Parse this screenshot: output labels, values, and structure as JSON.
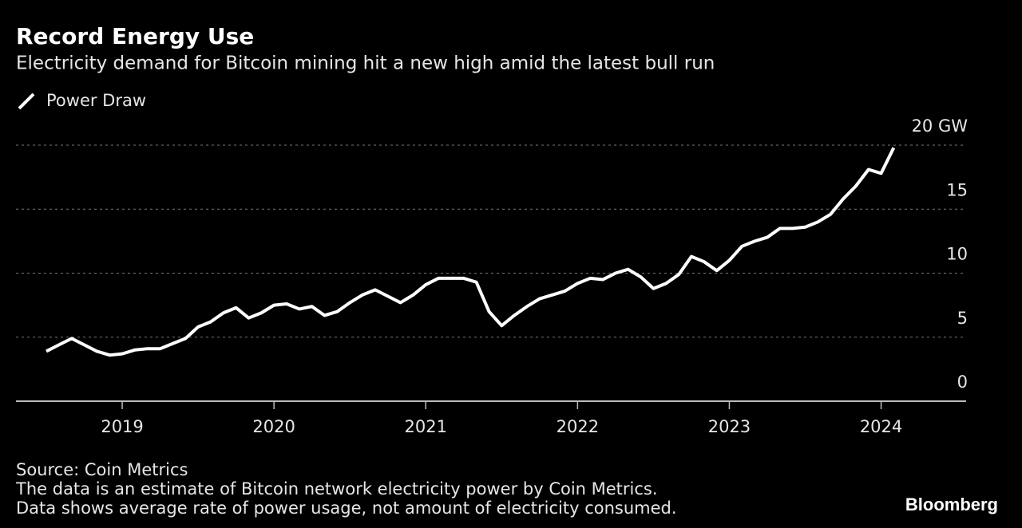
{
  "chart_data": {
    "type": "line",
    "title": "Record Energy Use",
    "subtitle": "Electricity demand for Bitcoin mining hit a new high amid the latest bull run",
    "x": [
      2018.5,
      2018.583,
      2018.667,
      2018.75,
      2018.833,
      2018.917,
      2019,
      2019.083,
      2019.167,
      2019.25,
      2019.333,
      2019.417,
      2019.5,
      2019.583,
      2019.667,
      2019.75,
      2019.833,
      2019.917,
      2020,
      2020.083,
      2020.167,
      2020.25,
      2020.333,
      2020.417,
      2020.5,
      2020.583,
      2020.667,
      2020.75,
      2020.833,
      2020.917,
      2021,
      2021.083,
      2021.167,
      2021.25,
      2021.333,
      2021.417,
      2021.5,
      2021.583,
      2021.667,
      2021.75,
      2021.833,
      2021.917,
      2022,
      2022.083,
      2022.167,
      2022.25,
      2022.333,
      2022.417,
      2022.5,
      2022.583,
      2022.667,
      2022.75,
      2022.833,
      2022.917,
      2023,
      2023.083,
      2023.167,
      2023.25,
      2023.333,
      2023.417,
      2023.5,
      2023.583,
      2023.667,
      2023.75,
      2023.833,
      2023.917,
      2024,
      2024.083
    ],
    "series": [
      {
        "name": "Power Draw",
        "color": "#ffffff",
        "values": [
          3.9,
          4.4,
          4.9,
          4.4,
          3.9,
          3.6,
          3.7,
          4.0,
          4.1,
          4.1,
          4.5,
          4.9,
          5.8,
          6.2,
          6.9,
          7.3,
          6.5,
          6.9,
          7.5,
          7.6,
          7.2,
          7.4,
          6.7,
          7.0,
          7.7,
          8.3,
          8.7,
          8.2,
          7.7,
          8.3,
          9.1,
          9.6,
          9.6,
          9.6,
          9.3,
          7.0,
          5.9,
          6.7,
          7.4,
          8.0,
          8.3,
          8.6,
          9.2,
          9.6,
          9.5,
          10.0,
          10.3,
          9.7,
          8.8,
          9.2,
          9.9,
          11.3,
          10.9,
          10.2,
          11.0,
          12.1,
          12.5,
          12.8,
          13.5,
          13.5,
          13.6,
          14.0,
          14.6,
          15.8,
          16.8,
          18.1,
          17.8,
          19.8
        ]
      }
    ],
    "xlim": [
      2018.3,
      2024.56
    ],
    "xticks": [
      2019,
      2020,
      2021,
      2022,
      2023,
      2024
    ],
    "ylim": [
      0,
      20
    ],
    "yticks": [
      0,
      5,
      10,
      15,
      {
        "value": 20,
        "label": "20 GW"
      }
    ],
    "grid": true,
    "legend": "top-left",
    "source": "Source: Coin Metrics",
    "notes": [
      "The data is an estimate of Bitcoin network electricity power by Coin Metrics.",
      "Data shows average rate of power usage, not amount of electricity consumed."
    ],
    "brand": "Bloomberg"
  }
}
